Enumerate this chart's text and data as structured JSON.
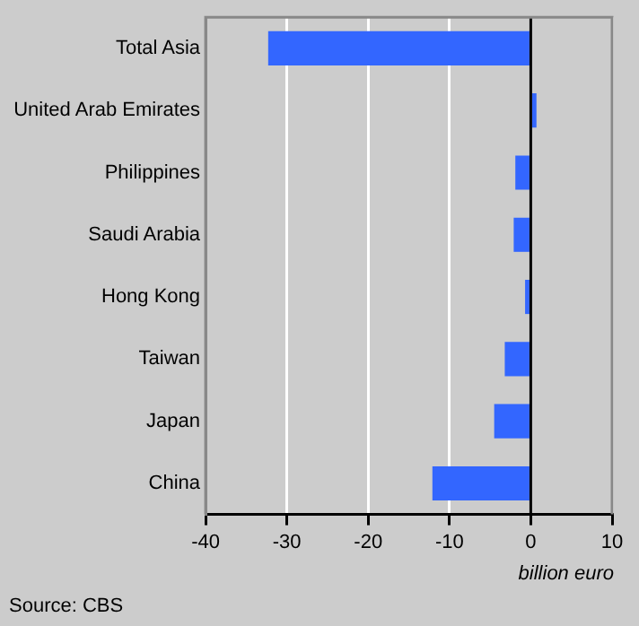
{
  "chart_data": {
    "type": "bar",
    "orientation": "horizontal",
    "categories": [
      "Total Asia",
      "United Arab Emirates",
      "Philippines",
      "Saudi Arabia",
      "Hong Kong",
      "Taiwan",
      "Japan",
      "China"
    ],
    "values": [
      -32.3,
      0.7,
      -1.9,
      -2.1,
      -0.7,
      -3.2,
      -4.5,
      -12.1
    ],
    "color": "#3366ff",
    "xlim": [
      -40,
      10
    ],
    "xticks": [
      -40,
      -30,
      -20,
      -10,
      0,
      10
    ],
    "grid": "x",
    "xlabel": "billion euro",
    "ref_lines": [
      {
        "axis": "x",
        "value": 0,
        "color": "#000000"
      }
    ],
    "annotations": [
      "Source: CBS"
    ]
  }
}
